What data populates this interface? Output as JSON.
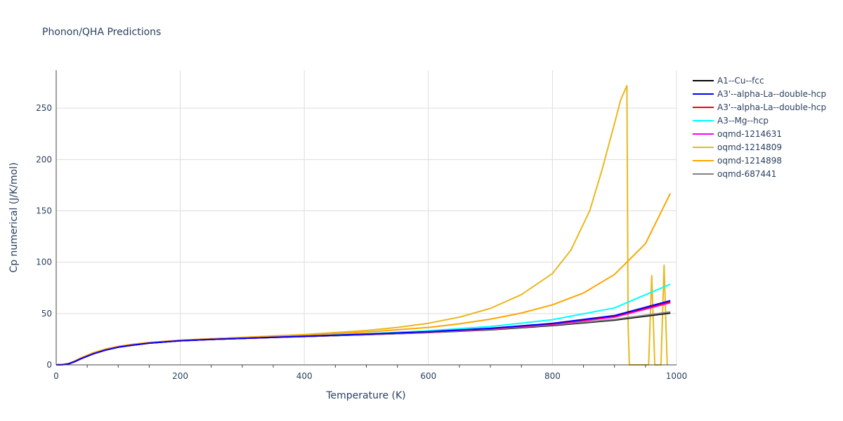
{
  "chart_data": {
    "type": "line",
    "title": "Phonon/QHA Predictions",
    "xlabel": "Temperature (K)",
    "ylabel": "Cp numerical (J/K/mol)",
    "xlim": [
      0,
      1000
    ],
    "ylim": [
      0,
      287
    ],
    "xticks": [
      0,
      200,
      400,
      600,
      800,
      1000
    ],
    "yticks": [
      0,
      50,
      100,
      150,
      200,
      250
    ],
    "grid": true,
    "legend_position": "right",
    "series": [
      {
        "name": "A1--Cu--fcc",
        "color": "#000000",
        "x": [
          0,
          10,
          20,
          30,
          40,
          60,
          80,
          100,
          120,
          150,
          200,
          250,
          300,
          400,
          500,
          600,
          700,
          800,
          900,
          990
        ],
        "y": [
          0,
          0.2,
          1.0,
          3.2,
          6.0,
          10.8,
          14.5,
          17.2,
          19.0,
          21.2,
          23.5,
          24.8,
          25.8,
          27.6,
          29.4,
          31.4,
          34.2,
          38.3,
          43.6,
          50.5
        ]
      },
      {
        "name": "A3'--alpha-La--double-hcp",
        "color": "#0000ff",
        "x": [
          0,
          10,
          20,
          30,
          40,
          60,
          80,
          100,
          120,
          150,
          200,
          250,
          300,
          400,
          500,
          600,
          700,
          800,
          900,
          990
        ],
        "y": [
          0,
          0.2,
          1.0,
          3.2,
          6.0,
          10.8,
          14.5,
          17.2,
          19.0,
          21.2,
          23.5,
          24.8,
          25.8,
          27.8,
          29.9,
          32.3,
          35.6,
          40.4,
          48.0,
          62.5
        ]
      },
      {
        "name": "A3'--alpha-La--double-hcp",
        "color": "#ff0000",
        "x": [
          0,
          10,
          20,
          30,
          40,
          60,
          80,
          100,
          120,
          150,
          200,
          250,
          300,
          400,
          500,
          600,
          700,
          800,
          900,
          990
        ],
        "y": [
          0,
          0.2,
          1.0,
          3.2,
          6.0,
          10.8,
          14.5,
          17.2,
          19.0,
          21.2,
          23.5,
          24.8,
          25.8,
          27.8,
          29.9,
          32.2,
          35.4,
          40.0,
          47.4,
          61.5
        ]
      },
      {
        "name": "A3--Mg--hcp",
        "color": "#00ffff",
        "x": [
          0,
          10,
          20,
          30,
          40,
          60,
          80,
          100,
          120,
          150,
          200,
          250,
          300,
          400,
          500,
          600,
          700,
          800,
          900,
          990
        ],
        "y": [
          0,
          0.2,
          1.0,
          3.2,
          6.0,
          10.8,
          14.5,
          17.2,
          19.0,
          21.2,
          23.5,
          24.8,
          25.8,
          28.0,
          30.3,
          33.2,
          37.3,
          44.0,
          55.5,
          78.5
        ]
      },
      {
        "name": "oqmd-1214631",
        "color": "#ff00ff",
        "x": [
          0,
          10,
          20,
          30,
          40,
          60,
          80,
          100,
          120,
          150,
          200,
          250,
          300,
          400,
          500,
          600,
          700,
          800,
          900,
          990
        ],
        "y": [
          0,
          0.2,
          1.0,
          3.2,
          6.0,
          10.8,
          14.5,
          17.2,
          19.0,
          21.2,
          23.5,
          24.8,
          25.8,
          27.8,
          29.8,
          32.0,
          35.1,
          39.5,
          46.5,
          60.5
        ]
      },
      {
        "name": "oqmd-1214809",
        "color": "#e8b81e",
        "x": [
          0,
          10,
          20,
          30,
          40,
          60,
          80,
          100,
          120,
          150,
          200,
          250,
          300,
          400,
          500,
          550,
          600,
          650,
          700,
          750,
          800,
          830,
          860,
          880,
          900,
          910,
          920,
          922,
          924,
          940,
          955,
          960,
          965,
          975,
          980,
          985
        ],
        "y": [
          0,
          0.1,
          1.2,
          3.8,
          6.8,
          11.8,
          15.5,
          18.0,
          19.8,
          21.8,
          24.0,
          25.5,
          26.8,
          29.5,
          33.5,
          36.5,
          40.5,
          46.5,
          55.0,
          68.5,
          89.0,
          112.0,
          150.0,
          190.0,
          235.0,
          258.0,
          272.0,
          40.0,
          0,
          0,
          0,
          87.0,
          0,
          0,
          97.0,
          0
        ]
      },
      {
        "name": "oqmd-1214898",
        "color": "#ffa500",
        "x": [
          0,
          10,
          20,
          30,
          40,
          60,
          80,
          100,
          120,
          150,
          200,
          250,
          300,
          400,
          500,
          600,
          650,
          700,
          750,
          800,
          850,
          900,
          950,
          990
        ],
        "y": [
          0,
          0.1,
          1.2,
          3.8,
          6.8,
          11.8,
          15.5,
          18.0,
          19.8,
          21.8,
          24.0,
          25.4,
          26.6,
          29.0,
          32.0,
          36.5,
          40.0,
          44.5,
          50.5,
          58.5,
          70.0,
          88.0,
          118.0,
          167.0
        ]
      },
      {
        "name": "oqmd-687441",
        "color": "#808080",
        "x": [
          0,
          10,
          20,
          30,
          40,
          60,
          80,
          100,
          120,
          150,
          200,
          250,
          300,
          400,
          500,
          600,
          700,
          800,
          900,
          990
        ],
        "y": [
          0,
          0.2,
          1.0,
          3.2,
          6.0,
          10.8,
          14.5,
          17.2,
          19.0,
          21.2,
          23.5,
          24.8,
          25.8,
          27.6,
          29.4,
          31.5,
          34.5,
          38.8,
          44.3,
          51.5
        ]
      }
    ]
  }
}
